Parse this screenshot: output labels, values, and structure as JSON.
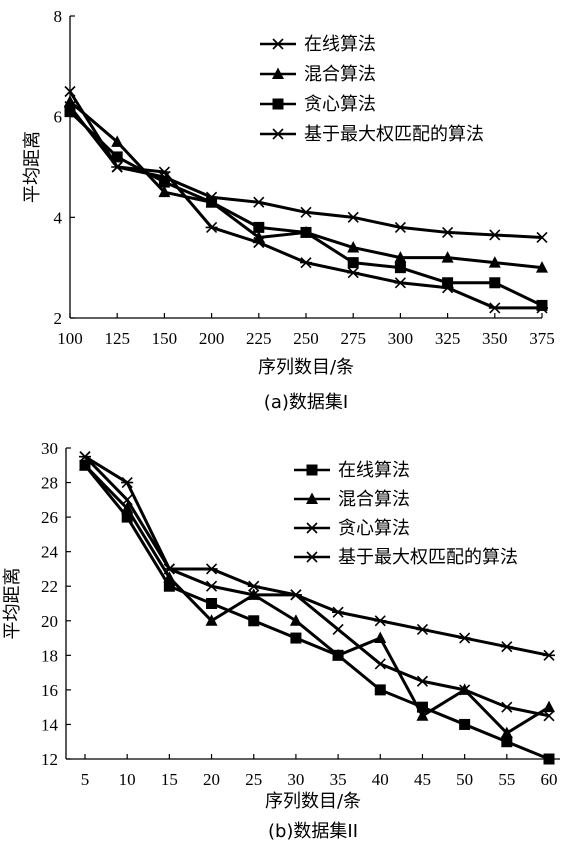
{
  "chart_data": [
    {
      "type": "line",
      "caption": "(a)数据集I",
      "xlabel": "序列数目/条",
      "ylabel": "平均距离",
      "categories": [
        "100",
        "125",
        "150",
        "200",
        "225",
        "250",
        "275",
        "300",
        "325",
        "350",
        "375"
      ],
      "yticks": [
        "2",
        "4",
        "6",
        "8"
      ],
      "ylim": [
        2,
        8
      ],
      "legend_position": "top-right",
      "series": [
        {
          "name": "在线算法",
          "marker": "x",
          "values": [
            6.5,
            5.0,
            4.8,
            4.4,
            4.3,
            4.1,
            4.0,
            3.8,
            3.7,
            3.65,
            3.6
          ]
        },
        {
          "name": "混合算法",
          "marker": "triangle",
          "values": [
            6.3,
            5.5,
            4.5,
            4.3,
            3.6,
            3.7,
            3.4,
            3.2,
            3.2,
            3.1,
            3.0
          ]
        },
        {
          "name": "贪心算法",
          "marker": "square",
          "values": [
            6.1,
            5.2,
            4.7,
            4.3,
            3.8,
            3.7,
            3.1,
            3.0,
            2.7,
            2.7,
            2.25
          ]
        },
        {
          "name": "基于最大权匹配的算法",
          "marker": "star",
          "values": [
            6.2,
            5.0,
            4.9,
            3.8,
            3.5,
            3.1,
            2.9,
            2.7,
            2.6,
            2.2,
            2.2
          ]
        }
      ]
    },
    {
      "type": "line",
      "caption": "(b)数据集II",
      "xlabel": "序列数目/条",
      "ylabel": "平均距离",
      "categories": [
        "5",
        "10",
        "15",
        "20",
        "25",
        "30",
        "35",
        "40",
        "45",
        "50",
        "55",
        "60"
      ],
      "yticks": [
        "12",
        "14",
        "16",
        "18",
        "20",
        "22",
        "24",
        "26",
        "28",
        "30"
      ],
      "ylim": [
        12,
        30
      ],
      "legend_position": "top-right",
      "series": [
        {
          "name": "在线算法",
          "marker": "square",
          "values": [
            29.0,
            26.0,
            22.0,
            21.0,
            20.0,
            19.0,
            18.0,
            16.0,
            15.0,
            14.0,
            13.0,
            12.0
          ]
        },
        {
          "name": "混合算法",
          "marker": "triangle",
          "values": [
            29.0,
            26.5,
            22.5,
            20.0,
            21.5,
            20.0,
            18.0,
            19.0,
            14.5,
            16.0,
            13.5,
            15.0
          ]
        },
        {
          "name": "贪心算法",
          "marker": "x",
          "values": [
            29.5,
            27.0,
            23.0,
            22.0,
            21.5,
            21.5,
            19.5,
            17.5,
            16.5,
            16.0,
            15.0,
            14.5
          ]
        },
        {
          "name": "基于最大权匹配的算法",
          "marker": "star",
          "values": [
            29.5,
            28.0,
            23.0,
            23.0,
            22.0,
            21.5,
            20.5,
            20.0,
            19.5,
            19.0,
            18.5,
            18.0
          ]
        }
      ]
    }
  ]
}
